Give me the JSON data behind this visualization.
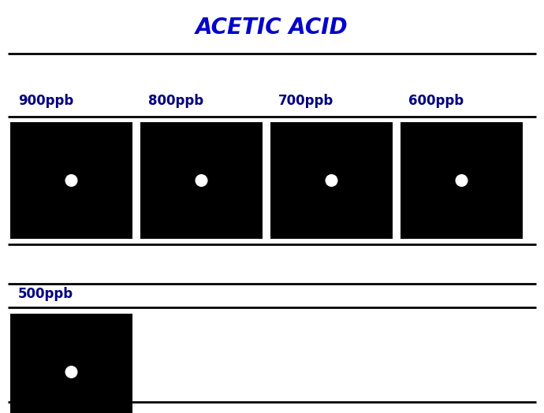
{
  "title": "ACETIC ACID",
  "title_color": "#0000CC",
  "title_fontsize": 20,
  "background_color": "#FFFFFF",
  "row1_labels": [
    "900ppb",
    "800ppb",
    "700ppb",
    "600ppb"
  ],
  "row2_labels": [
    "500ppb"
  ],
  "label_color": "#000080",
  "label_fontsize": 12,
  "box_color": "#000000",
  "dot_color": "#FFFFFF",
  "separator_color": "#000000",
  "sep_lw": 2.0,
  "fig_width": 6.9,
  "fig_height": 5.24
}
